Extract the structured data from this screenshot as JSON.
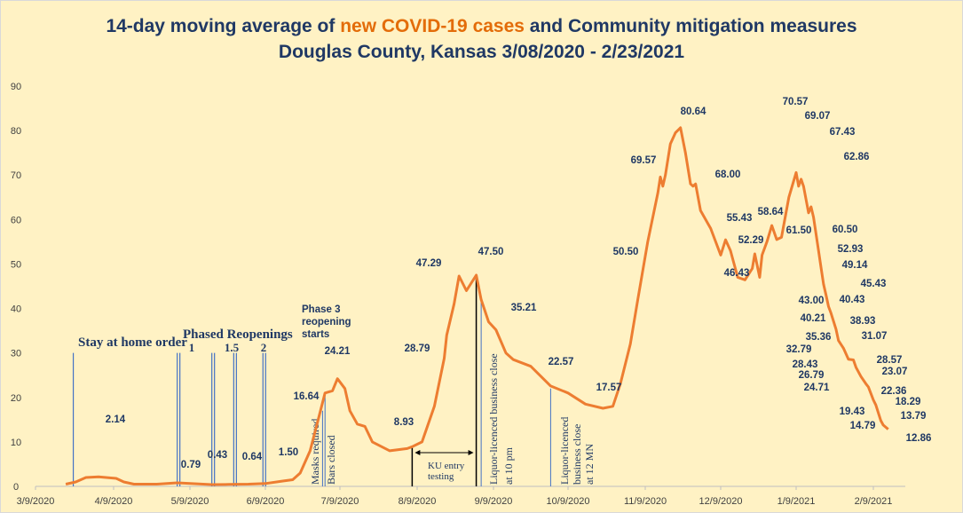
{
  "title": {
    "line1_pre": "14-day moving average of ",
    "line1_highlight": "new COVID-19 cases",
    "line1_post": " and Community mitigation measures",
    "line2": "Douglas County, Kansas 3/08/2020 - 2/23/2021"
  },
  "colors": {
    "background": "#fff2c4",
    "line": "#ed7d31",
    "title": "#1f3864",
    "highlight": "#e36c09",
    "event_line": "#4472c4"
  },
  "chart_data": {
    "type": "line",
    "ylim": [
      0,
      90
    ],
    "yticks": [
      "0",
      "10",
      "20",
      "30",
      "40",
      "50",
      "60",
      "70",
      "80",
      "90"
    ],
    "xticks": [
      "3/9/2020",
      "4/9/2020",
      "5/9/2020",
      "6/9/2020",
      "7/9/2020",
      "8/9/2020",
      "9/9/2020",
      "10/9/2020",
      "11/9/2020",
      "12/9/2020",
      "1/9/2021",
      "2/9/2021"
    ],
    "grid": false,
    "points": [
      [
        "2020-03-21",
        0.5
      ],
      [
        "2020-03-25",
        1.0
      ],
      [
        "2020-03-29",
        2.0
      ],
      [
        "2020-04-03",
        2.14
      ],
      [
        "2020-04-10",
        1.8
      ],
      [
        "2020-04-13",
        1.0
      ],
      [
        "2020-04-17",
        0.5
      ],
      [
        "2020-04-26",
        0.5
      ],
      [
        "2020-05-04",
        0.79
      ],
      [
        "2020-05-18",
        0.4
      ],
      [
        "2020-05-25",
        0.43
      ],
      [
        "2020-06-02",
        0.5
      ],
      [
        "2020-06-09",
        0.64
      ],
      [
        "2020-06-16",
        1.2
      ],
      [
        "2020-06-20",
        1.5
      ],
      [
        "2020-06-23",
        3
      ],
      [
        "2020-06-27",
        8
      ],
      [
        "2020-07-01",
        16.64
      ],
      [
        "2020-07-03",
        21
      ],
      [
        "2020-07-06",
        21.5
      ],
      [
        "2020-07-08",
        24.21
      ],
      [
        "2020-07-11",
        22
      ],
      [
        "2020-07-13",
        17
      ],
      [
        "2020-07-16",
        14
      ],
      [
        "2020-07-19",
        13.5
      ],
      [
        "2020-07-22",
        10
      ],
      [
        "2020-07-29",
        8
      ],
      [
        "2020-08-05",
        8.5
      ],
      [
        "2020-08-07",
        8.93
      ],
      [
        "2020-08-11",
        10
      ],
      [
        "2020-08-16",
        18
      ],
      [
        "2020-08-20",
        28.79
      ],
      [
        "2020-08-21",
        34
      ],
      [
        "2020-08-24",
        41
      ],
      [
        "2020-08-26",
        47.29
      ],
      [
        "2020-08-29",
        44
      ],
      [
        "2020-09-02",
        47.5
      ],
      [
        "2020-09-04",
        42
      ],
      [
        "2020-09-07",
        37
      ],
      [
        "2020-09-10",
        35.21
      ],
      [
        "2020-09-14",
        30
      ],
      [
        "2020-09-17",
        28.5
      ],
      [
        "2020-09-24",
        27
      ],
      [
        "2020-10-02",
        22.57
      ],
      [
        "2020-10-09",
        21
      ],
      [
        "2020-10-16",
        18.5
      ],
      [
        "2020-10-23",
        17.57
      ],
      [
        "2020-10-27",
        18
      ],
      [
        "2020-10-30",
        23
      ],
      [
        "2020-11-03",
        32
      ],
      [
        "2020-11-06",
        42
      ],
      [
        "2020-11-10",
        55
      ],
      [
        "2020-11-14",
        66
      ],
      [
        "2020-11-15",
        69.57
      ],
      [
        "2020-11-16",
        67.5
      ],
      [
        "2020-11-17",
        70
      ],
      [
        "2020-11-19",
        77
      ],
      [
        "2020-11-21",
        79.5
      ],
      [
        "2020-11-23",
        80.64
      ],
      [
        "2020-11-25",
        75
      ],
      [
        "2020-11-27",
        68
      ],
      [
        "2020-11-28",
        67.5
      ],
      [
        "2020-11-29",
        68
      ],
      [
        "2020-12-01",
        62
      ],
      [
        "2020-12-05",
        58
      ],
      [
        "2020-12-09",
        52
      ],
      [
        "2020-12-11",
        55.43
      ],
      [
        "2020-12-13",
        53
      ],
      [
        "2020-12-16",
        47
      ],
      [
        "2020-12-19",
        46.43
      ],
      [
        "2020-12-22",
        49
      ],
      [
        "2020-12-23",
        52.29
      ],
      [
        "2020-12-25",
        47
      ],
      [
        "2020-12-26",
        52
      ],
      [
        "2020-12-28",
        55
      ],
      [
        "2020-12-30",
        58.64
      ],
      [
        "2021-01-01",
        55.5
      ],
      [
        "2021-01-03",
        56
      ],
      [
        "2021-01-06",
        65
      ],
      [
        "2021-01-09",
        70.57
      ],
      [
        "2021-01-10",
        67.5
      ],
      [
        "2021-01-11",
        69.07
      ],
      [
        "2021-01-12",
        67.43
      ],
      [
        "2021-01-14",
        61.5
      ],
      [
        "2021-01-15",
        62.86
      ],
      [
        "2021-01-16",
        60.5
      ],
      [
        "2021-01-18",
        52.93
      ],
      [
        "2021-01-19",
        49.14
      ],
      [
        "2021-01-20",
        45.43
      ],
      [
        "2021-01-21",
        43.0
      ],
      [
        "2021-01-22",
        40.43
      ],
      [
        "2021-01-23",
        38.93
      ],
      [
        "2021-01-25",
        35.36
      ],
      [
        "2021-01-26",
        32.79
      ],
      [
        "2021-01-28",
        31.07
      ],
      [
        "2021-01-30",
        28.57
      ],
      [
        "2021-02-01",
        28.43
      ],
      [
        "2021-02-02",
        26.79
      ],
      [
        "2021-02-04",
        24.71
      ],
      [
        "2021-02-06",
        23.07
      ],
      [
        "2021-02-07",
        22.36
      ],
      [
        "2021-02-09",
        19.43
      ],
      [
        "2021-02-10",
        18.29
      ],
      [
        "2021-02-12",
        14.79
      ],
      [
        "2021-02-13",
        13.79
      ],
      [
        "2021-02-15",
        12.86
      ]
    ],
    "data_labels": [
      "2.14",
      "0.79",
      "0.43",
      "0.64",
      "1.50",
      "16.64",
      "24.21",
      "8.93",
      "28.79",
      "47.29",
      "47.50",
      "35.21",
      "22.57",
      "17.57",
      "50.50",
      "69.57",
      "80.64",
      "68.00",
      "55.43",
      "52.29",
      "58.64",
      "46.43",
      "70.57",
      "69.07",
      "67.43",
      "62.86",
      "61.50",
      "60.50",
      "52.93",
      "49.14",
      "45.43",
      "43.00",
      "40.43",
      "40.21",
      "38.93",
      "35.36",
      "31.07",
      "32.79",
      "28.43",
      "28.57",
      "26.79",
      "23.07",
      "24.71",
      "22.36",
      "19.43",
      "18.29",
      "14.79",
      "13.79",
      "12.86"
    ],
    "events": [
      {
        "date": "2020-03-24",
        "label": "Stay at home order",
        "value": 30
      },
      {
        "date": "2020-05-04",
        "label": "1",
        "value": 30
      },
      {
        "date": "2020-05-18",
        "label": "",
        "value": 30
      },
      {
        "date": "2020-05-27",
        "label": "1.5",
        "value": 30
      },
      {
        "date": "2020-06-08",
        "label": "2",
        "value": 30
      },
      {
        "date": "2020-07-02",
        "label": "Masks required",
        "value": 17
      },
      {
        "date": "2020-07-03",
        "label": "Bars closed",
        "value": 21
      },
      {
        "date": "2020-09-04",
        "label": "Liquor-licenced  business close at 10 pm",
        "value": 42
      },
      {
        "date": "2020-10-02",
        "label": "Liquor-licenced business close at 12 MN",
        "value": 22
      }
    ],
    "group_label": "Phased Reopenings",
    "phase3_label": [
      "Phase 3",
      "reopening",
      "starts"
    ],
    "ku_range": {
      "start": "2020-08-07",
      "end": "2020-09-02",
      "label": [
        "KU entry",
        "testing"
      ]
    }
  }
}
